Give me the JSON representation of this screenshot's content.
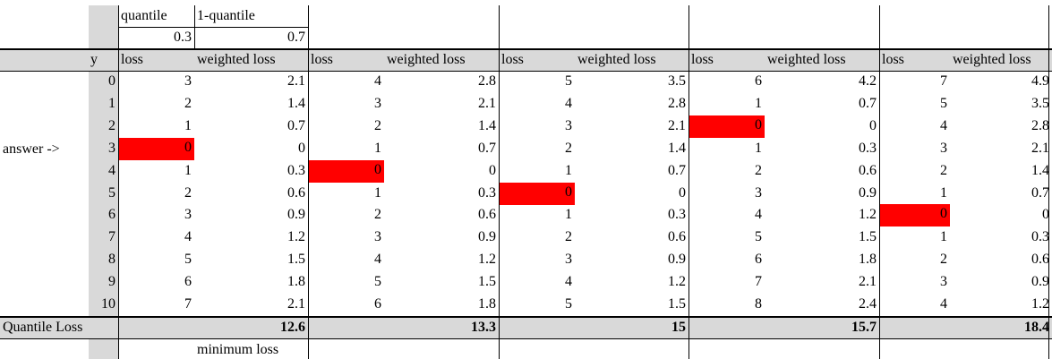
{
  "sheet": {
    "quantile_label": "quantile",
    "one_minus_quantile_label": "1-quantile",
    "quantile_value": "0.3",
    "one_minus_quantile_value": "0.7",
    "y_header": "y",
    "answer_label": "answer ->",
    "loss_label": "loss",
    "weighted_loss_label": "weighted loss",
    "quantile_loss_label": "Quantile Loss",
    "minimum_loss_label": "minimum loss",
    "y_values": [
      "0",
      "1",
      "2",
      "3",
      "4",
      "5",
      "6",
      "7",
      "8",
      "9",
      "10"
    ],
    "highlight_color": "#ff0000",
    "header_gray": "#d9d9d9",
    "groups": [
      {
        "loss": [
          "3",
          "2",
          "1",
          "0",
          "1",
          "2",
          "3",
          "4",
          "5",
          "6",
          "7"
        ],
        "weighted": [
          "2.1",
          "1.4",
          "0.7",
          "0",
          "0.3",
          "0.6",
          "0.9",
          "1.2",
          "1.5",
          "1.8",
          "2.1"
        ],
        "zero_row": 3,
        "total": "12.6"
      },
      {
        "loss": [
          "4",
          "3",
          "2",
          "1",
          "0",
          "1",
          "2",
          "3",
          "4",
          "5",
          "6"
        ],
        "weighted": [
          "2.8",
          "2.1",
          "1.4",
          "0.7",
          "0",
          "0.3",
          "0.6",
          "0.9",
          "1.2",
          "1.5",
          "1.8"
        ],
        "zero_row": 4,
        "total": "13.3"
      },
      {
        "loss": [
          "5",
          "4",
          "3",
          "2",
          "1",
          "0",
          "1",
          "2",
          "3",
          "4",
          "5"
        ],
        "weighted": [
          "3.5",
          "2.8",
          "2.1",
          "1.4",
          "0.7",
          "0",
          "0.3",
          "0.6",
          "0.9",
          "1.2",
          "1.5"
        ],
        "zero_row": 5,
        "total": "15"
      },
      {
        "loss": [
          "6",
          "1",
          "0",
          "1",
          "2",
          "3",
          "4",
          "5",
          "6",
          "7",
          "8"
        ],
        "weighted": [
          "4.2",
          "0.7",
          "0",
          "0.3",
          "0.6",
          "0.9",
          "1.2",
          "1.5",
          "1.8",
          "2.1",
          "2.4"
        ],
        "zero_row": 2,
        "total": "15.7"
      },
      {
        "loss": [
          "7",
          "5",
          "4",
          "3",
          "2",
          "1",
          "0",
          "1",
          "2",
          "3",
          "4"
        ],
        "weighted": [
          "4.9",
          "3.5",
          "2.8",
          "2.1",
          "1.4",
          "0.7",
          "0",
          "0.3",
          "0.6",
          "0.9",
          "1.2"
        ],
        "zero_row": 6,
        "total": "18.4"
      }
    ]
  }
}
